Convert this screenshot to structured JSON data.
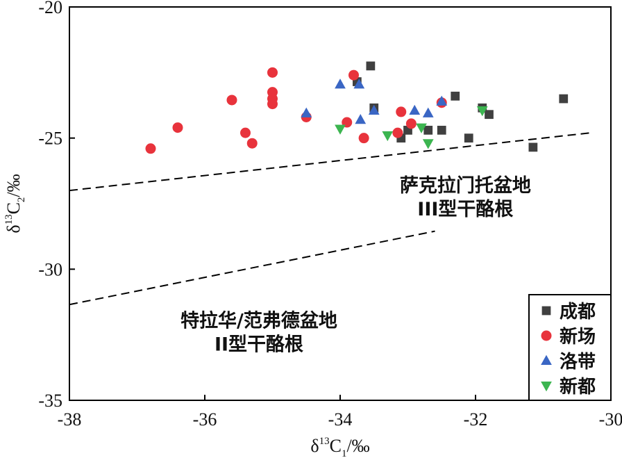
{
  "chart_data": {
    "type": "scatter",
    "title": "",
    "xlabel": "δ13C1/‰",
    "xlabel_parts": {
      "base": "δ",
      "sup": "13",
      "mid": "C",
      "sub": "1",
      "unit": "/‰"
    },
    "ylabel": "δ13C2/‰",
    "ylabel_parts": {
      "base": "δ",
      "sup": "13",
      "mid": "C",
      "sub": "2",
      "unit": "/‰"
    },
    "xlim": [
      -38,
      -30
    ],
    "ylim": [
      -35,
      -20
    ],
    "xticks": [
      -38,
      -36,
      -34,
      -32,
      -30
    ],
    "yticks": [
      -35,
      -30,
      -25,
      -20
    ],
    "grid": false,
    "legend_position": "bottom-right",
    "series": [
      {
        "name": "成都",
        "marker": "square",
        "color": "#404040",
        "points": [
          [
            -33.55,
            -22.25
          ],
          [
            -33.75,
            -22.85
          ],
          [
            -33.5,
            -23.85
          ],
          [
            -33.1,
            -25.0
          ],
          [
            -33.0,
            -24.7
          ],
          [
            -32.7,
            -24.7
          ],
          [
            -32.5,
            -24.7
          ],
          [
            -32.3,
            -23.4
          ],
          [
            -32.1,
            -25.0
          ],
          [
            -31.9,
            -23.85
          ],
          [
            -31.8,
            -24.1
          ],
          [
            -31.15,
            -25.35
          ],
          [
            -30.7,
            -23.5
          ]
        ]
      },
      {
        "name": "新场",
        "marker": "circle",
        "color": "#e8333c",
        "points": [
          [
            -36.8,
            -25.4
          ],
          [
            -36.4,
            -24.6
          ],
          [
            -35.6,
            -23.55
          ],
          [
            -35.4,
            -24.8
          ],
          [
            -35.3,
            -25.2
          ],
          [
            -35.0,
            -22.5
          ],
          [
            -35.0,
            -23.25
          ],
          [
            -35.0,
            -23.5
          ],
          [
            -35.0,
            -23.7
          ],
          [
            -34.5,
            -24.2
          ],
          [
            -33.9,
            -24.4
          ],
          [
            -33.8,
            -22.6
          ],
          [
            -33.65,
            -25.0
          ],
          [
            -33.15,
            -24.8
          ],
          [
            -33.1,
            -24.0
          ],
          [
            -32.95,
            -24.45
          ],
          [
            -32.5,
            -23.65
          ]
        ]
      },
      {
        "name": "洛带",
        "marker": "triangle-up",
        "color": "#3a66c4",
        "points": [
          [
            -34.5,
            -24.05
          ],
          [
            -34.0,
            -22.95
          ],
          [
            -33.72,
            -22.95
          ],
          [
            -33.7,
            -24.3
          ],
          [
            -33.5,
            -23.95
          ],
          [
            -32.9,
            -23.95
          ],
          [
            -32.7,
            -24.05
          ],
          [
            -32.5,
            -23.6
          ]
        ]
      },
      {
        "name": "新都",
        "marker": "triangle-down",
        "color": "#3cb550",
        "points": [
          [
            -34.0,
            -24.65
          ],
          [
            -33.3,
            -24.9
          ],
          [
            -32.8,
            -24.6
          ],
          [
            -32.7,
            -25.2
          ],
          [
            -31.9,
            -23.95
          ]
        ]
      }
    ],
    "boundary_lines": [
      {
        "points": [
          [
            -38,
            -27.0
          ],
          [
            -30.3,
            -24.8
          ]
        ],
        "style": "dashed"
      },
      {
        "points": [
          [
            -38,
            -31.35
          ],
          [
            -32.6,
            -28.55
          ]
        ],
        "style": "dashed"
      }
    ],
    "annotations": [
      {
        "lines": [
          "萨克拉门托盆地",
          "III型干酪根"
        ],
        "x": -32.15,
        "y": -27.05
      },
      {
        "lines": [
          "特拉华/范弗德盆地",
          "II型干酪根"
        ],
        "x": -35.2,
        "y": -32.2
      }
    ]
  }
}
